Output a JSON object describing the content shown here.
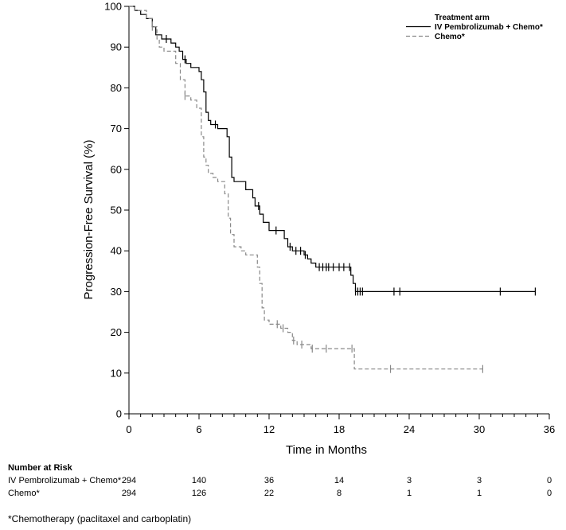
{
  "chart_data": {
    "type": "line",
    "title": "",
    "xlabel": "Time in Months",
    "ylabel": "Progression-Free Survival (%)",
    "xlim": [
      0,
      36
    ],
    "ylim": [
      0,
      100
    ],
    "xticks": [
      0,
      6,
      12,
      18,
      24,
      30,
      36
    ],
    "yticks": [
      0,
      10,
      20,
      30,
      40,
      50,
      60,
      70,
      80,
      90,
      100
    ],
    "legend": {
      "title": "Treatment arm",
      "position": "top-right",
      "entries": [
        "IV Pembrolizumab + Chemo*",
        "Chemo*"
      ]
    },
    "series": [
      {
        "name": "IV Pembrolizumab + Chemo*",
        "style": "solid",
        "color": "#000000",
        "points": [
          [
            0,
            100
          ],
          [
            0.5,
            99
          ],
          [
            1,
            98
          ],
          [
            1.5,
            97
          ],
          [
            2,
            95
          ],
          [
            2.3,
            93
          ],
          [
            2.8,
            92
          ],
          [
            3.2,
            92
          ],
          [
            3.6,
            91
          ],
          [
            4,
            90
          ],
          [
            4.3,
            89
          ],
          [
            4.6,
            87
          ],
          [
            4.9,
            86
          ],
          [
            5.3,
            85
          ],
          [
            5.7,
            85
          ],
          [
            6,
            84
          ],
          [
            6.2,
            82
          ],
          [
            6.4,
            79
          ],
          [
            6.6,
            74
          ],
          [
            6.8,
            72
          ],
          [
            7,
            71
          ],
          [
            7.3,
            71
          ],
          [
            7.6,
            70
          ],
          [
            8.2,
            70
          ],
          [
            8.4,
            68
          ],
          [
            8.6,
            63
          ],
          [
            8.8,
            58
          ],
          [
            9,
            57
          ],
          [
            9.5,
            57
          ],
          [
            10,
            55
          ],
          [
            10.4,
            55
          ],
          [
            10.6,
            53
          ],
          [
            10.8,
            51
          ],
          [
            11.2,
            49
          ],
          [
            11.5,
            47
          ],
          [
            12,
            45
          ],
          [
            12.5,
            45
          ],
          [
            13,
            45
          ],
          [
            13.3,
            43
          ],
          [
            13.6,
            41
          ],
          [
            14,
            40
          ],
          [
            14.6,
            40
          ],
          [
            15,
            39
          ],
          [
            15.3,
            38
          ],
          [
            15.6,
            37
          ],
          [
            16,
            36
          ],
          [
            17,
            36
          ],
          [
            17.5,
            36
          ],
          [
            18,
            36
          ],
          [
            18.8,
            36
          ],
          [
            19,
            34
          ],
          [
            19.2,
            32
          ],
          [
            19.4,
            30
          ],
          [
            20,
            30
          ],
          [
            25,
            30
          ],
          [
            30,
            30
          ],
          [
            33,
            30
          ],
          [
            34.8,
            30
          ]
        ],
        "censor_times": [
          3.2,
          4.8,
          7.4,
          11.1,
          12.6,
          13.8,
          14.3,
          14.7,
          15.1,
          16.3,
          16.6,
          16.9,
          17.1,
          17.5,
          18,
          18.4,
          18.9,
          19.4,
          19.6,
          19.8,
          20,
          22.7,
          23.2,
          31.8,
          34.8
        ]
      },
      {
        "name": "Chemo*",
        "style": "dashed",
        "color": "#888888",
        "points": [
          [
            0,
            100
          ],
          [
            0.5,
            99
          ],
          [
            1.5,
            97
          ],
          [
            2,
            95
          ],
          [
            2.4,
            92
          ],
          [
            2.6,
            90
          ],
          [
            3,
            89
          ],
          [
            3.6,
            89
          ],
          [
            4,
            86
          ],
          [
            4.4,
            82
          ],
          [
            4.8,
            78
          ],
          [
            5.3,
            77
          ],
          [
            5.8,
            75
          ],
          [
            6.2,
            68
          ],
          [
            6.4,
            63
          ],
          [
            6.6,
            61
          ],
          [
            6.8,
            59
          ],
          [
            7.2,
            58
          ],
          [
            7.6,
            57
          ],
          [
            8.2,
            54
          ],
          [
            8.5,
            48
          ],
          [
            8.7,
            44
          ],
          [
            9,
            41
          ],
          [
            9.6,
            40
          ],
          [
            10,
            39
          ],
          [
            10.8,
            39
          ],
          [
            11,
            36
          ],
          [
            11.2,
            32
          ],
          [
            11.4,
            26
          ],
          [
            11.6,
            23
          ],
          [
            12,
            22
          ],
          [
            12.5,
            22
          ],
          [
            13,
            21
          ],
          [
            13.6,
            20
          ],
          [
            14,
            18
          ],
          [
            14.4,
            17
          ],
          [
            15,
            17
          ],
          [
            15.6,
            16
          ],
          [
            16.5,
            16
          ],
          [
            17,
            16
          ],
          [
            18,
            16
          ],
          [
            19,
            16
          ],
          [
            19.3,
            11
          ],
          [
            20,
            11
          ],
          [
            25,
            11
          ],
          [
            30,
            11
          ],
          [
            30.3,
            11
          ]
        ],
        "censor_times": [
          2,
          4.8,
          12.7,
          13.2,
          14.1,
          14.8,
          15.7,
          16.9,
          19.1,
          22.4,
          30.3
        ]
      }
    ]
  },
  "risk_table": {
    "title": "Number at Risk",
    "times": [
      0,
      6,
      12,
      18,
      24,
      30,
      36
    ],
    "rows": [
      {
        "label": "IV Pembrolizumab + Chemo*",
        "values": [
          "294",
          "140",
          "36",
          "14",
          "3",
          "3",
          "0"
        ]
      },
      {
        "label": "Chemo*",
        "values": [
          "294",
          "126",
          "22",
          "8",
          "1",
          "1",
          "0"
        ]
      }
    ]
  },
  "footnote": "*Chemotherapy (paclitaxel and carboplatin)"
}
